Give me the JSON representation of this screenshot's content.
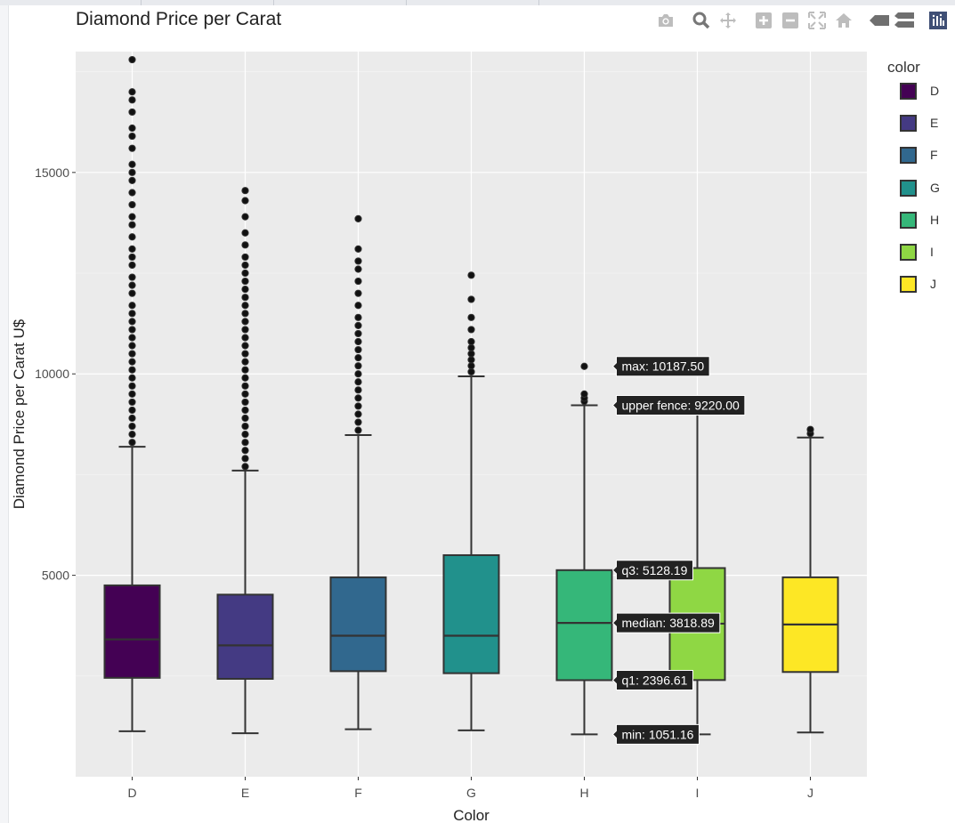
{
  "title": "Diamond Price per Carat",
  "modebar": [
    "camera-icon",
    "zoom-icon",
    "pan-icon",
    "zoom-in-icon",
    "zoom-out-icon",
    "autoscale-icon",
    "reset-axes-icon",
    "spike-lines-icon",
    "compare-hover-icon",
    "plotly-logo-icon"
  ],
  "legend": {
    "title": "color",
    "items": [
      {
        "label": "D",
        "color": "#440154"
      },
      {
        "label": "E",
        "color": "#443a83"
      },
      {
        "label": "F",
        "color": "#31688e"
      },
      {
        "label": "G",
        "color": "#21918c"
      },
      {
        "label": "H",
        "color": "#35b779"
      },
      {
        "label": "I",
        "color": "#8fd744"
      },
      {
        "label": "J",
        "color": "#fde725"
      }
    ]
  },
  "chart_data": {
    "type": "box",
    "title": "Diamond Price per Carat",
    "xlabel": "Color",
    "ylabel": "Diamond Price per Carat U$",
    "categories": [
      "D",
      "E",
      "F",
      "G",
      "H",
      "I",
      "J"
    ],
    "ylim": [
      0,
      18000
    ],
    "yticks": [
      5000,
      10000,
      15000
    ],
    "grid": true,
    "legend_position": "right",
    "boxes": [
      {
        "name": "D",
        "color": "#440154",
        "min": 1130,
        "q1": 2455,
        "median": 3410,
        "q3": 4750,
        "upper_fence": 8190,
        "outliers": [
          8300,
          8500,
          8700,
          8900,
          9100,
          9300,
          9500,
          9700,
          9900,
          10100,
          10300,
          10500,
          10700,
          10900,
          11100,
          11300,
          11500,
          11700,
          12000,
          12200,
          12400,
          12700,
          12900,
          13100,
          13400,
          13700,
          13900,
          14200,
          14500,
          14800,
          15000,
          15200,
          15600,
          15900,
          16100,
          16500,
          16800,
          17000,
          17800
        ]
      },
      {
        "name": "E",
        "color": "#443a83",
        "min": 1080,
        "q1": 2430,
        "median": 3260,
        "q3": 4520,
        "upper_fence": 7600,
        "outliers": [
          7700,
          7900,
          8100,
          8300,
          8500,
          8700,
          8900,
          9100,
          9300,
          9500,
          9700,
          9900,
          10100,
          10300,
          10500,
          10700,
          10900,
          11100,
          11300,
          11500,
          11700,
          11900,
          12100,
          12300,
          12500,
          12700,
          12900,
          13200,
          13500,
          13900,
          14300,
          14550
        ]
      },
      {
        "name": "F",
        "color": "#31688e",
        "min": 1180,
        "q1": 2620,
        "median": 3500,
        "q3": 4950,
        "upper_fence": 8480,
        "outliers": [
          8600,
          8800,
          9000,
          9200,
          9400,
          9600,
          9800,
          10000,
          10200,
          10400,
          10600,
          10800,
          11000,
          11200,
          11400,
          11700,
          12000,
          12300,
          12600,
          12800,
          13100,
          13850
        ]
      },
      {
        "name": "G",
        "color": "#21918c",
        "min": 1150,
        "q1": 2570,
        "median": 3500,
        "q3": 5500,
        "upper_fence": 9940,
        "outliers": [
          10050,
          10200,
          10350,
          10500,
          10650,
          10800,
          11100,
          11400,
          11850,
          12450
        ]
      },
      {
        "name": "H",
        "color": "#35b779",
        "min": 1051.16,
        "q1": 2396.61,
        "median": 3818.89,
        "q3": 5128.19,
        "upper_fence": 9220,
        "outliers": [
          9320,
          9400,
          9500,
          10187.5
        ]
      },
      {
        "name": "I",
        "color": "#8fd744",
        "min": 1051.16,
        "q1": 2400,
        "median": 3800,
        "q3": 5180,
        "upper_fence": 9220,
        "outliers": []
      },
      {
        "name": "J",
        "color": "#fde725",
        "min": 1100,
        "q1": 2600,
        "median": 3780,
        "q3": 4950,
        "upper_fence": 8420,
        "outliers": [
          8520,
          8620
        ]
      }
    ],
    "hover_labels": [
      {
        "text": "max: 10187.50",
        "value": 10187.5
      },
      {
        "text": "upper fence: 9220.00",
        "value": 9220
      },
      {
        "text": "q3: 5128.19",
        "value": 5128.19
      },
      {
        "text": "median: 3818.89",
        "value": 3818.89
      },
      {
        "text": "q1: 2396.61",
        "value": 2396.61
      },
      {
        "text": "min: 1051.16",
        "value": 1051.16
      }
    ]
  }
}
